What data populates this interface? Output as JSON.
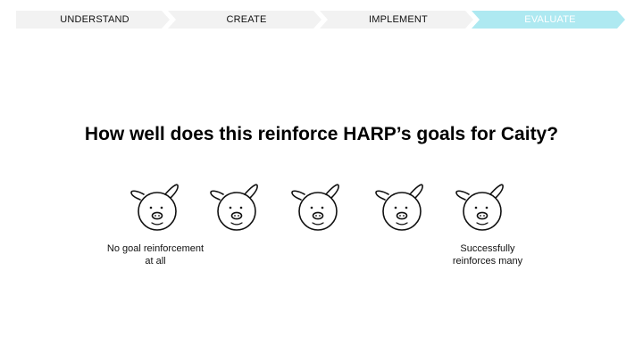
{
  "progress_steps": [
    {
      "label": "UNDERSTAND",
      "active": false
    },
    {
      "label": "CREATE",
      "active": false
    },
    {
      "label": "IMPLEMENT",
      "active": false
    },
    {
      "label": "EVALUATE",
      "active": true
    }
  ],
  "active_step_color": "#aee9f1",
  "question": "How well does this reinforce HARP’s goals for Caity?",
  "rating": {
    "options": 5,
    "icon": "pig-face-icon",
    "low_label_line1": "No goal reinforcement",
    "low_label_line2": "at all",
    "high_label_line1": "Successfully",
    "high_label_line2": "reinforces many"
  }
}
